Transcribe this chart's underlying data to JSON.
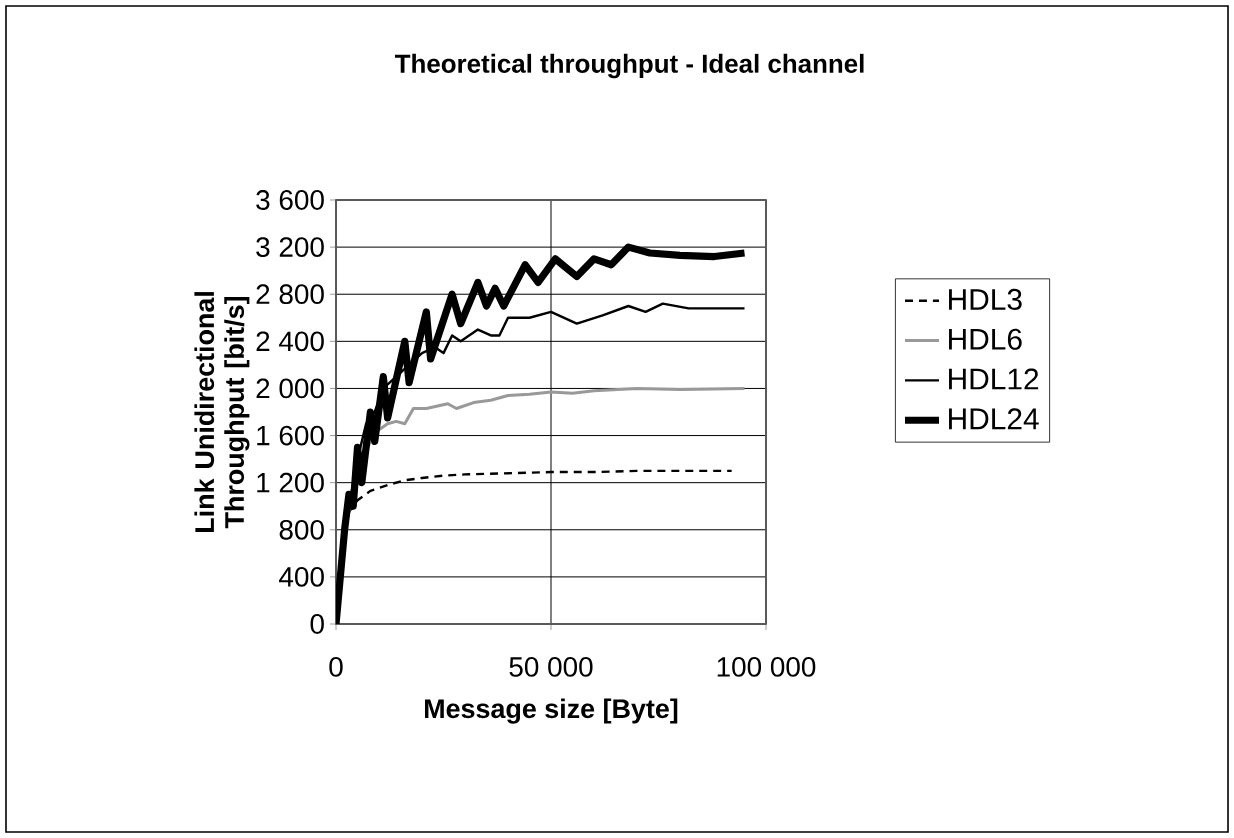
{
  "chart_data": {
    "type": "line",
    "title": "Theoretical throughput - Ideal channel",
    "xlabel": "Message size [Byte]",
    "ylabel": "Link Unidirectional Throughput [bit/s]",
    "xlim": [
      0,
      100000
    ],
    "ylim": [
      0,
      3600
    ],
    "xticks": [
      0,
      {
        "value": 50000,
        "label": "50 000"
      },
      {
        "value": 100000,
        "label": "100 000"
      }
    ],
    "yticks": [
      0,
      400,
      800,
      {
        "value": 1200,
        "label": "1 200"
      },
      {
        "value": 1600,
        "label": "1 600"
      },
      {
        "value": 2000,
        "label": "2 000"
      },
      {
        "value": 2400,
        "label": "2 400"
      },
      {
        "value": 2800,
        "label": "2 800"
      },
      {
        "value": 3200,
        "label": "3 200"
      },
      {
        "value": 3600,
        "label": "3 600"
      }
    ],
    "grid": true,
    "legend": "right",
    "marker": "none",
    "series": [
      {
        "name": "HDL3",
        "color": "#000000",
        "line_style": "dashed",
        "x": [
          0,
          1500,
          3000,
          5000,
          8000,
          12000,
          16000,
          20000,
          25000,
          30000,
          40000,
          50000,
          60000,
          70000,
          92000
        ],
        "values": [
          0,
          700,
          950,
          1050,
          1130,
          1180,
          1220,
          1240,
          1260,
          1270,
          1280,
          1290,
          1290,
          1300,
          1300
        ]
      },
      {
        "name": "HDL6",
        "color": "#999999",
        "line_style": "solid",
        "x": [
          0,
          2000,
          4000,
          6000,
          8000,
          10000,
          12000,
          14000,
          16000,
          18000,
          21000,
          26000,
          28000,
          32000,
          36000,
          40000,
          45000,
          50000,
          55000,
          60000,
          70000,
          80000,
          95000
        ],
        "values": [
          0,
          800,
          1100,
          1400,
          1550,
          1650,
          1700,
          1720,
          1700,
          1830,
          1830,
          1870,
          1830,
          1880,
          1900,
          1940,
          1950,
          1970,
          1960,
          1980,
          2000,
          1990,
          2000
        ]
      },
      {
        "name": "HDL12",
        "color": "#000000",
        "line_style": "solid",
        "x": [
          0,
          2000,
          3000,
          5000,
          7000,
          9000,
          11000,
          14000,
          17000,
          20000,
          23000,
          25000,
          27000,
          29000,
          33000,
          36000,
          38000,
          40000,
          45000,
          50000,
          56000,
          62000,
          68000,
          72000,
          76000,
          82000,
          95000
        ],
        "values": [
          0,
          800,
          1000,
          1400,
          1700,
          1800,
          2000,
          2100,
          2200,
          2300,
          2350,
          2300,
          2450,
          2400,
          2500,
          2450,
          2450,
          2600,
          2600,
          2650,
          2550,
          2620,
          2700,
          2650,
          2720,
          2680,
          2680
        ]
      },
      {
        "name": "HDL24",
        "color": "#000000",
        "line_style": "solid",
        "x": [
          0,
          2000,
          3000,
          4000,
          5000,
          6000,
          8000,
          9000,
          11000,
          12000,
          16000,
          17000,
          21000,
          22000,
          27000,
          29000,
          33000,
          35000,
          37000,
          39000,
          44000,
          47000,
          51000,
          56000,
          60000,
          64000,
          68000,
          73000,
          80000,
          88000,
          95000
        ],
        "values": [
          0,
          800,
          1100,
          1000,
          1500,
          1200,
          1800,
          1550,
          2100,
          1750,
          2400,
          2050,
          2650,
          2250,
          2800,
          2550,
          2900,
          2700,
          2850,
          2700,
          3050,
          2900,
          3100,
          2950,
          3100,
          3050,
          3200,
          3150,
          3130,
          3120,
          3150
        ]
      }
    ]
  }
}
